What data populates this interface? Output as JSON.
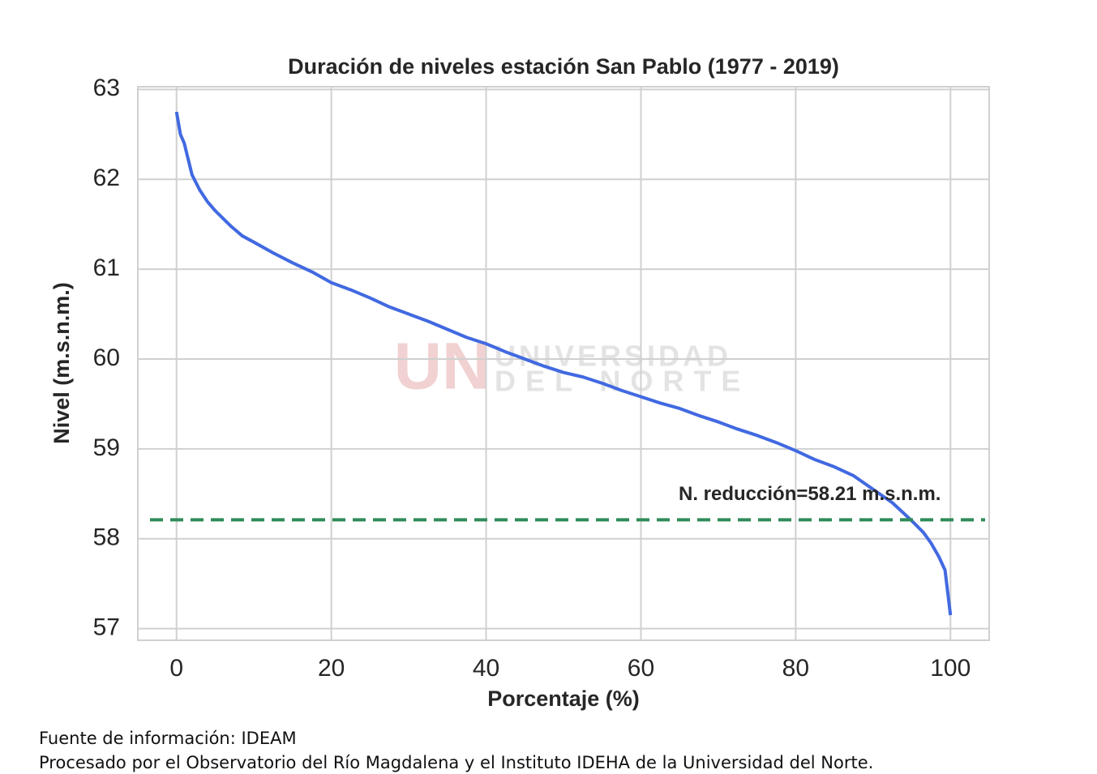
{
  "chart_data": {
    "type": "line",
    "title": "Duración de niveles estación San Pablo (1977 - 2019)",
    "x_label": "Porcentaje (%)",
    "y_label": "Nivel (m.s.n.m.)",
    "series": [
      {
        "name": "Nivel",
        "color": "#4169e1",
        "x": [
          0,
          0.5,
          1,
          2,
          3,
          4,
          5,
          7,
          8.5,
          10,
          12.5,
          15,
          17.5,
          20,
          22.5,
          25,
          27.5,
          30,
          32.5,
          35,
          37.5,
          40,
          42.5,
          45,
          47.5,
          50,
          52.5,
          55,
          57.5,
          60,
          62.5,
          65,
          67.5,
          70,
          72.5,
          75,
          77.5,
          80,
          82.5,
          85,
          87.5,
          90,
          92.5,
          95,
          96.5,
          97.5,
          98.5,
          99.3,
          100
        ],
        "values": [
          62.75,
          62.5,
          62.4,
          62.05,
          61.88,
          61.75,
          61.65,
          61.48,
          61.37,
          61.3,
          61.18,
          61.07,
          60.97,
          60.85,
          60.77,
          60.68,
          60.58,
          60.5,
          60.42,
          60.33,
          60.24,
          60.17,
          60.08,
          60.0,
          59.92,
          59.85,
          59.8,
          59.73,
          59.65,
          59.58,
          59.51,
          59.45,
          59.37,
          59.3,
          59.22,
          59.15,
          59.07,
          58.98,
          58.88,
          58.8,
          58.7,
          58.55,
          58.4,
          58.2,
          58.07,
          57.95,
          57.8,
          57.65,
          57.15
        ]
      }
    ],
    "reference_line": {
      "value": 58.21,
      "color": "#2e8b57",
      "label": "N. reducción=58.21 m.s.n.m."
    },
    "xlim": [
      -5,
      105
    ],
    "xticks": [
      0,
      20,
      40,
      60,
      80,
      100
    ],
    "ylim": [
      56.87,
      63.03
    ],
    "yticks": [
      57,
      58,
      59,
      60,
      61,
      62,
      63
    ],
    "grid": true,
    "watermark": {
      "logo": "UN",
      "line1": "UNIVERSIDAD",
      "line2": "DEL NORTE"
    }
  },
  "footer": {
    "source": "Fuente de información: IDEAM",
    "credit": "Procesado por el Observatorio del Río Magdalena y el Instituto IDEHA de la Universidad del Norte."
  }
}
